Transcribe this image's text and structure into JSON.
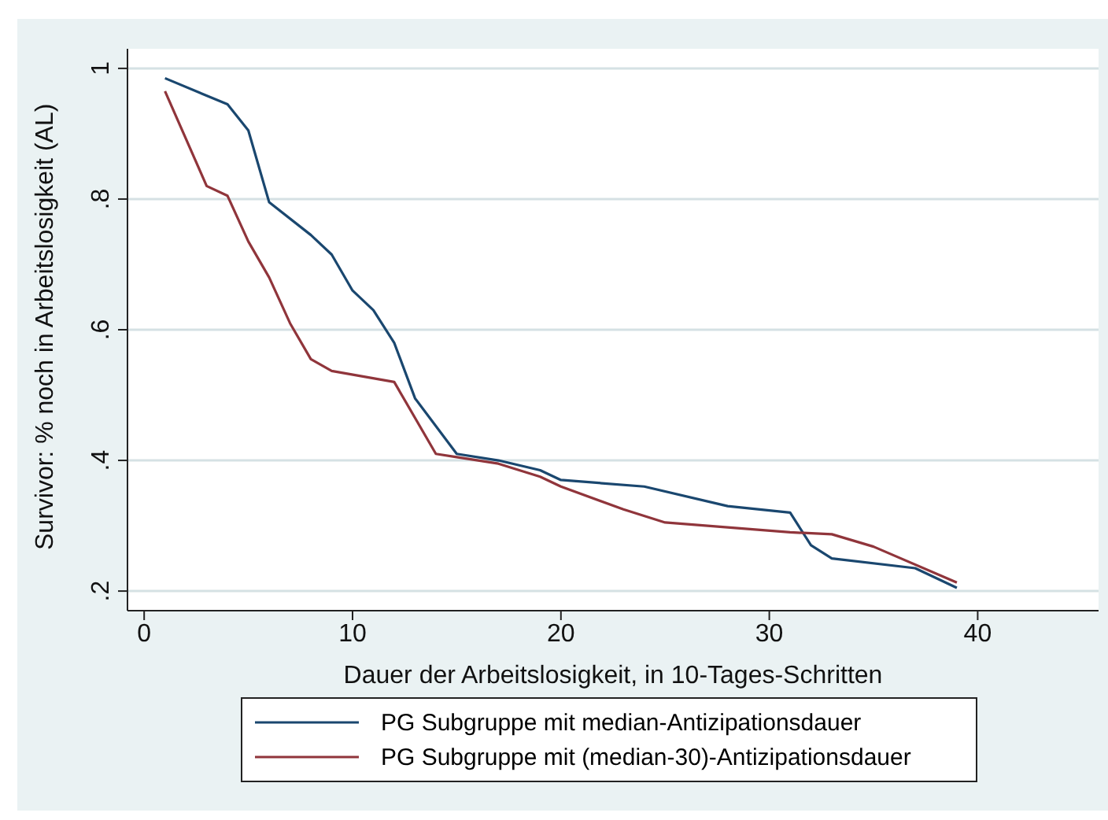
{
  "chart_data": {
    "type": "line",
    "xlabel": "Dauer der Arbeitslosigkeit, in 10-Tages-Schritten",
    "ylabel": "Survivor: % noch in Arbeitslosigkeit (AL)",
    "series": [
      {
        "name": "PG Subgruppe mit median-Antizipationsdauer",
        "color": "#1a476f",
        "x": [
          1,
          4,
          5,
          6,
          8,
          9,
          10,
          11,
          12,
          13,
          15,
          17,
          19,
          20,
          24,
          28,
          31,
          32,
          33,
          37,
          39
        ],
        "values": [
          0.985,
          0.945,
          0.905,
          0.795,
          0.745,
          0.715,
          0.66,
          0.63,
          0.58,
          0.495,
          0.41,
          0.4,
          0.385,
          0.37,
          0.36,
          0.33,
          0.32,
          0.27,
          0.25,
          0.235,
          0.205
        ]
      },
      {
        "name": "PG Subgruppe mit (median-30)-Antizipationsdauer",
        "color": "#90353b",
        "x": [
          1,
          3,
          4,
          5,
          6,
          7,
          8,
          9,
          12,
          14,
          15,
          17,
          19,
          20,
          23,
          25,
          31,
          33,
          35,
          39
        ],
        "values": [
          0.965,
          0.82,
          0.805,
          0.735,
          0.68,
          0.61,
          0.555,
          0.537,
          0.52,
          0.41,
          0.405,
          0.395,
          0.375,
          0.36,
          0.325,
          0.305,
          0.29,
          0.287,
          0.268,
          0.213
        ]
      }
    ],
    "xlim": [
      -0.8,
      45.8
    ],
    "xticks": [
      0,
      10,
      20,
      30,
      40
    ],
    "ylim": [
      0.17,
      1.03
    ],
    "yticks": [
      {
        "value": 0.2,
        "label": ".2"
      },
      {
        "value": 0.4,
        "label": ".4"
      },
      {
        "value": 0.6,
        "label": ".6"
      },
      {
        "value": 0.8,
        "label": ".8"
      },
      {
        "value": 1,
        "label": "1"
      }
    ],
    "grid": "y",
    "legend": "bottom",
    "marker": "none",
    "line_style": "solid"
  }
}
